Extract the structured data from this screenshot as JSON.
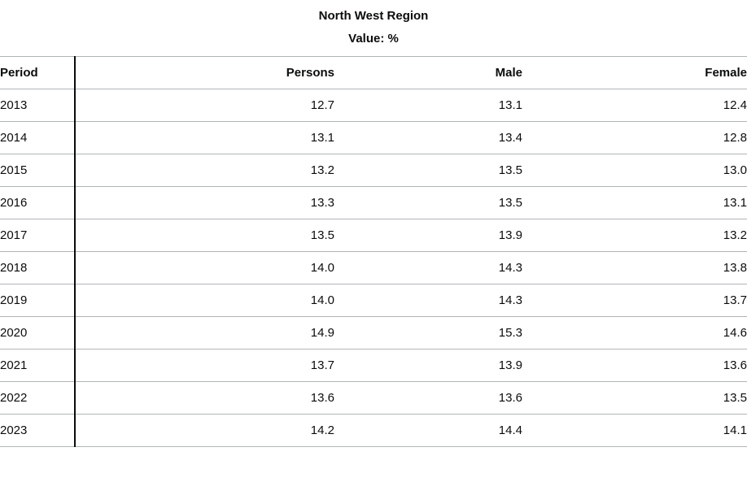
{
  "table": {
    "title": "North West Region",
    "subtitle": "Value: %",
    "headers": {
      "period": "Period",
      "persons": "Persons",
      "male": "Male",
      "female": "Female"
    },
    "rows": [
      {
        "period": "2013",
        "persons": "12.7",
        "male": "13.1",
        "female": "12.4"
      },
      {
        "period": "2014",
        "persons": "13.1",
        "male": "13.4",
        "female": "12.8"
      },
      {
        "period": "2015",
        "persons": "13.2",
        "male": "13.5",
        "female": "13.0"
      },
      {
        "period": "2016",
        "persons": "13.3",
        "male": "13.5",
        "female": "13.1"
      },
      {
        "period": "2017",
        "persons": "13.5",
        "male": "13.9",
        "female": "13.2"
      },
      {
        "period": "2018",
        "persons": "14.0",
        "male": "14.3",
        "female": "13.8"
      },
      {
        "period": "2019",
        "persons": "14.0",
        "male": "14.3",
        "female": "13.7"
      },
      {
        "period": "2020",
        "persons": "14.9",
        "male": "15.3",
        "female": "14.6"
      },
      {
        "period": "2021",
        "persons": "13.7",
        "male": "13.9",
        "female": "13.6"
      },
      {
        "period": "2022",
        "persons": "13.6",
        "male": "13.6",
        "female": "13.5"
      },
      {
        "period": "2023",
        "persons": "14.2",
        "male": "14.4",
        "female": "14.1"
      }
    ]
  }
}
